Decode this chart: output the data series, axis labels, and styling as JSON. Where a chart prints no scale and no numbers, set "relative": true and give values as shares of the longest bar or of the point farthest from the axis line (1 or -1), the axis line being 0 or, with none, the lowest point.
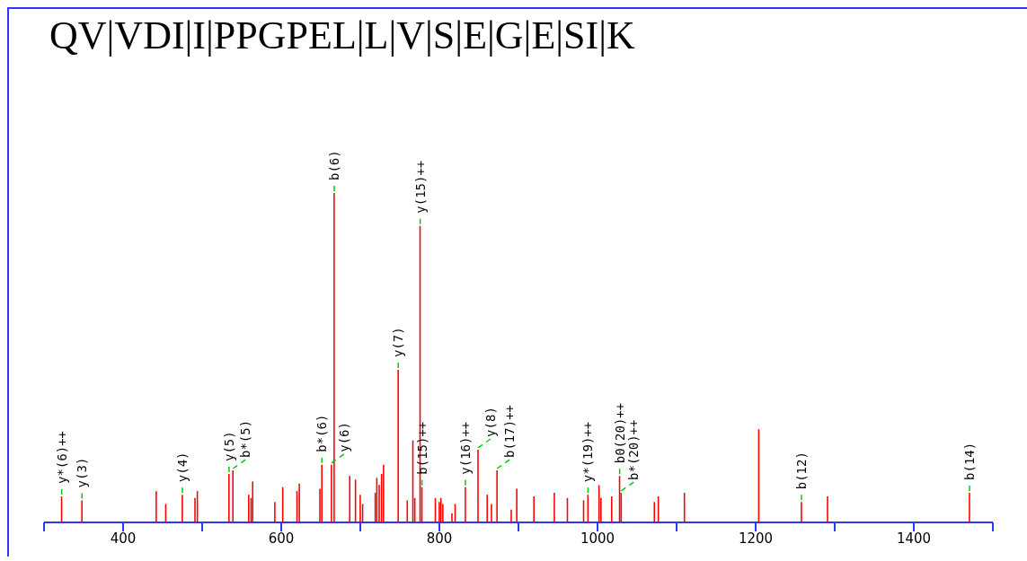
{
  "chart_data": {
    "type": "bar",
    "title": "QV|VDI|I|PPGPEL|L|V|S|E|G|E|SI|K",
    "relative": true,
    "color": "#ff0000",
    "x": [
      322.3,
      348,
      442,
      454,
      475,
      491,
      494,
      534,
      539,
      559,
      562,
      564,
      592,
      602,
      620,
      623,
      649,
      651.5,
      663.6,
      667,
      686.7,
      694,
      700,
      703,
      719,
      721,
      724,
      727,
      729.5,
      748,
      759.5,
      766.6,
      769,
      775.7,
      778,
      795,
      800,
      802,
      804.5,
      816,
      820,
      833,
      849,
      860.6,
      866,
      873,
      891,
      898,
      919.7,
      945.5,
      962,
      982.5,
      988,
      1002,
      1004.5,
      1018,
      1028,
      1030,
      1072,
      1077,
      1110,
      1204,
      1258,
      1291,
      1470.5
    ],
    "values": [
      0.079,
      0.067,
      0.095,
      0.056,
      0.084,
      0.074,
      0.095,
      0.147,
      0.158,
      0.084,
      0.074,
      0.124,
      0.062,
      0.107,
      0.095,
      0.118,
      0.102,
      0.175,
      0.175,
      1.0,
      0.141,
      0.13,
      0.084,
      0.056,
      0.09,
      0.135,
      0.114,
      0.147,
      0.175,
      0.463,
      0.067,
      0.249,
      0.074,
      0.9,
      0.107,
      0.074,
      0.062,
      0.074,
      0.056,
      0.028,
      0.056,
      0.107,
      0.221,
      0.084,
      0.056,
      0.158,
      0.039,
      0.102,
      0.079,
      0.09,
      0.074,
      0.067,
      0.084,
      0.113,
      0.074,
      0.079,
      0.141,
      0.09,
      0.062,
      0.079,
      0.09,
      0.283,
      0.062,
      0.079,
      0.09
    ],
    "xlim": [
      300,
      1500
    ],
    "xticks": [
      {
        "value": 300,
        "label": null
      },
      400,
      {
        "value": 500,
        "label": null
      },
      600,
      {
        "value": 700,
        "label": null
      },
      800,
      {
        "value": 900,
        "label": null
      },
      1000,
      {
        "value": 1100,
        "label": null
      },
      1200,
      {
        "value": 1300,
        "label": null
      },
      1400,
      {
        "value": 1500,
        "label": null
      }
    ],
    "annotations": [
      {
        "text": "y*(6)++",
        "x": 322.3,
        "y": 0.079
      },
      {
        "text": "y(3)",
        "x": 348,
        "y": 0.067
      },
      {
        "text": "y(4)",
        "x": 475,
        "y": 0.084
      },
      {
        "text": "y(5)",
        "x": 534,
        "y": 0.147
      },
      {
        "text": "b*(5)",
        "x": 539,
        "y": 0.158
      },
      {
        "text": "b*(6)",
        "x": 651.5,
        "y": 0.175
      },
      {
        "text": "y(6)",
        "x": 663.6,
        "y": 0.175
      },
      {
        "text": "b(6)",
        "x": 667,
        "y": 1.0
      },
      {
        "text": "y(7)",
        "x": 748,
        "y": 0.463
      },
      {
        "text": "y(15)++",
        "x": 775.7,
        "y": 0.9
      },
      {
        "text": "b(15)++",
        "x": 778,
        "y": 0.107
      },
      {
        "text": "y(16)++",
        "x": 833,
        "y": 0.107
      },
      {
        "text": "y(8)",
        "x": 849,
        "y": 0.221
      },
      {
        "text": "b(17)++",
        "x": 873,
        "y": 0.158
      },
      {
        "text": "y*(19)++",
        "x": 988,
        "y": 0.084
      },
      {
        "text": "b0(20)++",
        "x": 1028,
        "y": 0.141
      },
      {
        "text": "b*(20)++",
        "x": 1030,
        "y": 0.09
      },
      {
        "text": "b(12)",
        "x": 1258,
        "y": 0.062
      },
      {
        "text": "b(14)",
        "x": 1470.5,
        "y": 0.09
      }
    ]
  }
}
